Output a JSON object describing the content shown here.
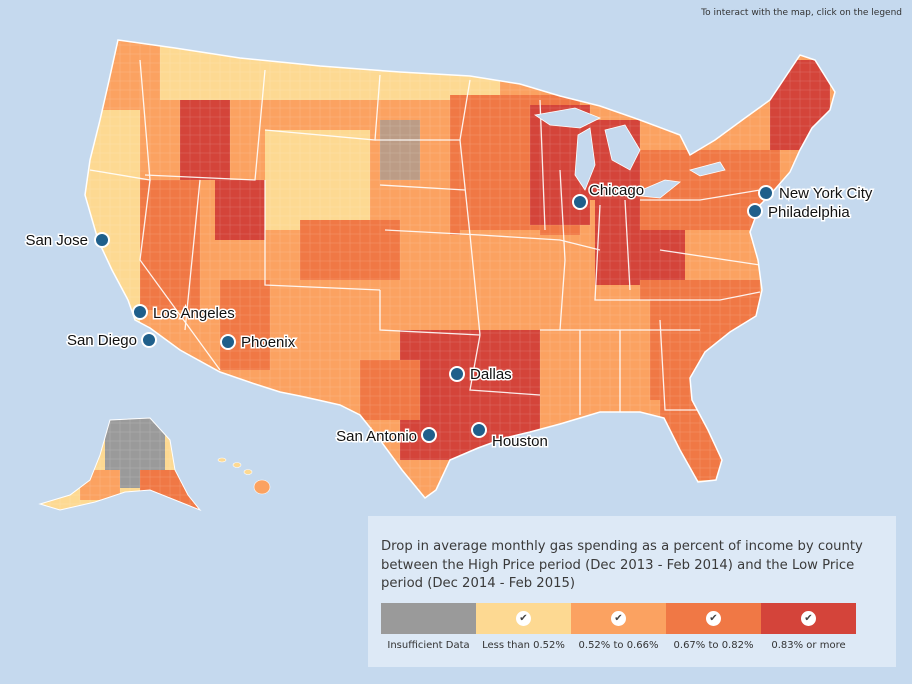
{
  "hint": "To interact with the map, click on the legend",
  "colors": {
    "insufficient": "#9a9a9a",
    "low": "#fdd992",
    "mid": "#fba261",
    "high": "#f07845",
    "top": "#d4443a",
    "ocean": "#c5d9ee"
  },
  "cities": [
    {
      "name": "Chicago"
    },
    {
      "name": "New York City"
    },
    {
      "name": "Philadelphia"
    },
    {
      "name": "San Jose"
    },
    {
      "name": "Los Angeles"
    },
    {
      "name": "San Diego"
    },
    {
      "name": "Phoenix"
    },
    {
      "name": "Dallas"
    },
    {
      "name": "San Antonio"
    },
    {
      "name": "Houston"
    }
  ],
  "legend": {
    "title": "Drop in average monthly gas spending as a percent of income by county between the High Price period (Dec 2013 - Feb 2014) and the Low Price period (Dec 2014 - Feb 2015)",
    "check_icon": "check-icon",
    "items": [
      {
        "label": "Insufficient Data",
        "color": "#9a9a9a",
        "checked": false
      },
      {
        "label": "Less than 0.52%",
        "color": "#fdd992",
        "checked": true
      },
      {
        "label": "0.52% to 0.66%",
        "color": "#fba261",
        "checked": true
      },
      {
        "label": "0.67% to 0.82%",
        "color": "#f07845",
        "checked": true
      },
      {
        "label": "0.83% or more",
        "color": "#d4443a",
        "checked": true
      }
    ]
  }
}
